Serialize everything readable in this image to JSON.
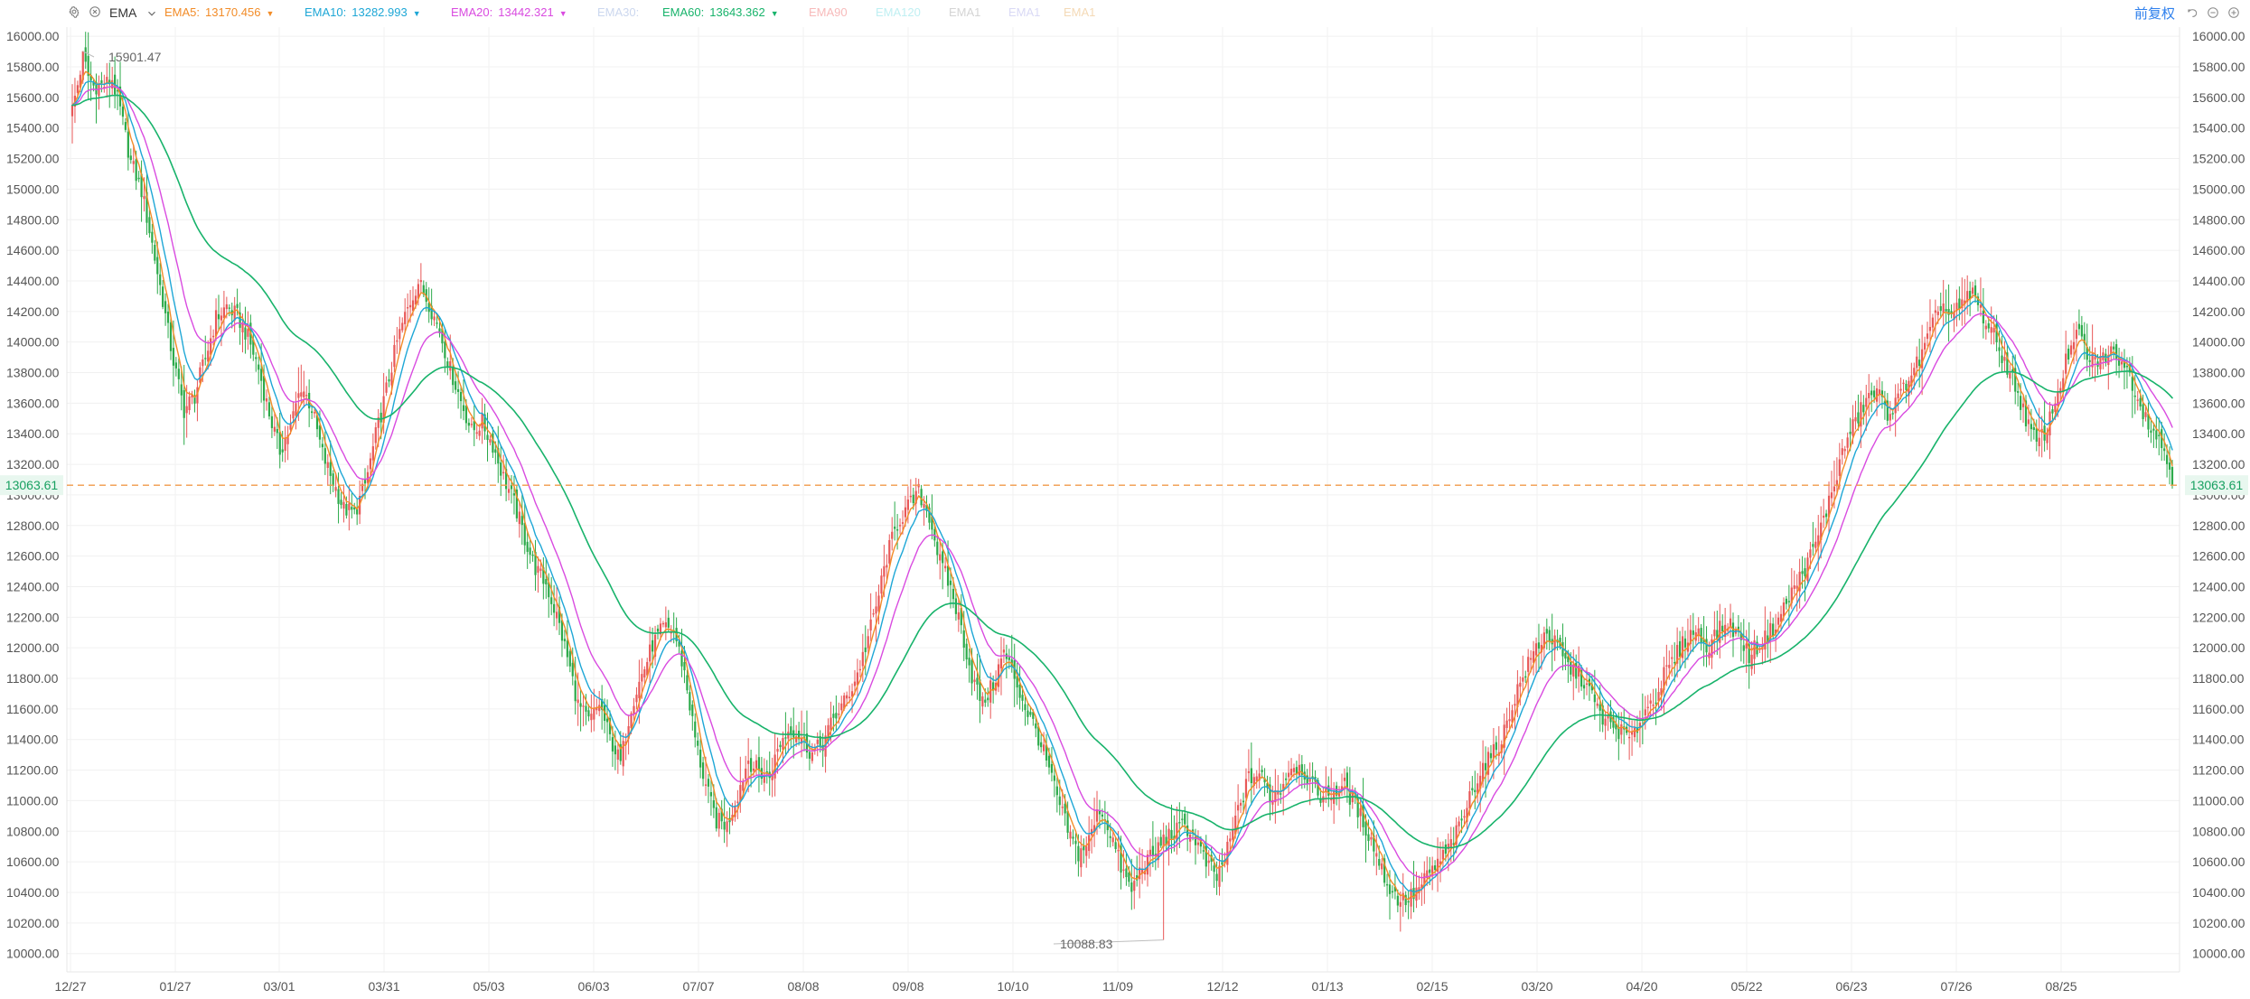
{
  "toolbar": {
    "indicator_name": "EMA",
    "restore_label": "前复权",
    "icons": [
      "settings-icon",
      "close-icon",
      "chevron-down-icon",
      "undo-icon",
      "minimize-icon",
      "add-icon"
    ],
    "legends": [
      {
        "label": "EMA5:",
        "value": "13170.456",
        "color": "#f28c28",
        "active": true
      },
      {
        "label": "EMA10:",
        "value": "13282.993",
        "color": "#1ea7d6",
        "active": true
      },
      {
        "label": "EMA20:",
        "value": "13442.321",
        "color": "#d94be0",
        "active": true
      },
      {
        "label": "EMA30:",
        "value": "",
        "color": "#c9d5ee",
        "active": false
      },
      {
        "label": "EMA60:",
        "value": "13643.362",
        "color": "#18b36b",
        "active": true
      },
      {
        "label": "EMA90",
        "value": "",
        "color": "#f7b7b7",
        "active": false
      },
      {
        "label": "EMA120",
        "value": "",
        "color": "#bceff2",
        "active": false
      },
      {
        "label": "EMA1",
        "value": "",
        "color": "#d2d2d2",
        "active": false
      },
      {
        "label": "EMA1",
        "value": "",
        "color": "#d7d7f5",
        "active": false
      },
      {
        "label": "EMA1",
        "value": "",
        "color": "#f4d8b3",
        "active": false
      }
    ]
  },
  "chart_data": {
    "type": "candlestick",
    "x_tick_labels": [
      "12/27",
      "01/27",
      "03/01",
      "03/31",
      "05/03",
      "06/03",
      "07/07",
      "08/08",
      "09/08",
      "10/10",
      "11/09",
      "12/12",
      "01/13",
      "02/15",
      "03/20",
      "04/20",
      "05/22",
      "06/23",
      "07/26",
      "08/25"
    ],
    "y_tick_labels": [
      "16000.00",
      "15800.00",
      "15600.00",
      "15400.00",
      "15200.00",
      "15000.00",
      "14800.00",
      "14600.00",
      "14400.00",
      "14200.00",
      "14000.00",
      "13800.00",
      "13600.00",
      "13400.00",
      "13200.00",
      "13000.00",
      "12800.00",
      "12600.00",
      "12400.00",
      "12200.00",
      "12000.00",
      "11800.00",
      "11600.00",
      "11400.00",
      "11200.00",
      "11000.00",
      "10800.00",
      "10600.00",
      "10400.00",
      "10200.00",
      "10000.00"
    ],
    "ylim": [
      9880,
      16060
    ],
    "grid": true,
    "current_price_label": "13063.61",
    "current_price": 13063.61,
    "max_label": "15901.47",
    "min_label": "10088.83",
    "candles": {
      "up_color": "#e85858",
      "down_color": "#2caa4a",
      "anchors": [
        [
          0,
          15500
        ],
        [
          2,
          15650
        ],
        [
          4,
          15820
        ],
        [
          6,
          15700
        ],
        [
          8,
          15650
        ],
        [
          12,
          15700
        ],
        [
          15,
          15760
        ],
        [
          18,
          15550
        ],
        [
          22,
          15180
        ],
        [
          26,
          14980
        ],
        [
          30,
          14650
        ],
        [
          34,
          14300
        ],
        [
          38,
          13880
        ],
        [
          42,
          13520
        ],
        [
          46,
          13600
        ],
        [
          50,
          13880
        ],
        [
          54,
          14180
        ],
        [
          58,
          14260
        ],
        [
          62,
          14170
        ],
        [
          66,
          14020
        ],
        [
          70,
          13840
        ],
        [
          74,
          13570
        ],
        [
          78,
          13310
        ],
        [
          82,
          13420
        ],
        [
          86,
          13670
        ],
        [
          90,
          13540
        ],
        [
          94,
          13280
        ],
        [
          98,
          13100
        ],
        [
          102,
          12900
        ],
        [
          106,
          12860
        ],
        [
          110,
          13080
        ],
        [
          114,
          13430
        ],
        [
          118,
          13720
        ],
        [
          122,
          13990
        ],
        [
          126,
          14180
        ],
        [
          130,
          14370
        ],
        [
          134,
          14260
        ],
        [
          138,
          14080
        ],
        [
          142,
          13800
        ],
        [
          146,
          13590
        ],
        [
          150,
          13420
        ],
        [
          154,
          13520
        ],
        [
          158,
          13370
        ],
        [
          162,
          13120
        ],
        [
          166,
          12920
        ],
        [
          170,
          12700
        ],
        [
          174,
          12530
        ],
        [
          178,
          12420
        ],
        [
          182,
          12180
        ],
        [
          186,
          11900
        ],
        [
          190,
          11620
        ],
        [
          194,
          11550
        ],
        [
          198,
          11680
        ],
        [
          202,
          11420
        ],
        [
          206,
          11230
        ],
        [
          210,
          11620
        ],
        [
          214,
          11840
        ],
        [
          218,
          12030
        ],
        [
          222,
          12100
        ],
        [
          226,
          12060
        ],
        [
          230,
          11820
        ],
        [
          234,
          11430
        ],
        [
          238,
          11130
        ],
        [
          242,
          10880
        ],
        [
          246,
          10830
        ],
        [
          250,
          11050
        ],
        [
          254,
          11300
        ],
        [
          258,
          11210
        ],
        [
          262,
          11140
        ],
        [
          266,
          11330
        ],
        [
          270,
          11450
        ],
        [
          274,
          11420
        ],
        [
          278,
          11330
        ],
        [
          282,
          11380
        ],
        [
          286,
          11520
        ],
        [
          290,
          11650
        ],
        [
          294,
          11820
        ],
        [
          298,
          12040
        ],
        [
          302,
          12260
        ],
        [
          306,
          12550
        ],
        [
          310,
          12780
        ],
        [
          314,
          12920
        ],
        [
          318,
          13030
        ],
        [
          322,
          12860
        ],
        [
          326,
          12540
        ],
        [
          330,
          12390
        ],
        [
          334,
          12170
        ],
        [
          338,
          11860
        ],
        [
          342,
          11640
        ],
        [
          346,
          11730
        ],
        [
          350,
          11940
        ],
        [
          354,
          11810
        ],
        [
          358,
          11620
        ],
        [
          362,
          11450
        ],
        [
          366,
          11220
        ],
        [
          370,
          11010
        ],
        [
          374,
          10840
        ],
        [
          378,
          10700
        ],
        [
          382,
          10760
        ],
        [
          386,
          10940
        ],
        [
          390,
          10780
        ],
        [
          394,
          10570
        ],
        [
          398,
          10420
        ],
        [
          402,
          10560
        ],
        [
          406,
          10590
        ],
        [
          410,
          10720
        ],
        [
          414,
          10810
        ],
        [
          418,
          10890
        ],
        [
          422,
          10770
        ],
        [
          426,
          10580
        ],
        [
          430,
          10490
        ],
        [
          434,
          10690
        ],
        [
          438,
          10960
        ],
        [
          442,
          11130
        ],
        [
          446,
          11130
        ],
        [
          450,
          10990
        ],
        [
          454,
          11090
        ],
        [
          458,
          11270
        ],
        [
          462,
          11230
        ],
        [
          466,
          11080
        ],
        [
          470,
          11020
        ],
        [
          474,
          11090
        ],
        [
          478,
          11130
        ],
        [
          482,
          10970
        ],
        [
          486,
          10780
        ],
        [
          490,
          10610
        ],
        [
          494,
          10450
        ],
        [
          498,
          10380
        ],
        [
          502,
          10360
        ],
        [
          506,
          10410
        ],
        [
          510,
          10520
        ],
        [
          514,
          10640
        ],
        [
          518,
          10760
        ],
        [
          522,
          10870
        ],
        [
          526,
          11040
        ],
        [
          530,
          11190
        ],
        [
          534,
          11300
        ],
        [
          538,
          11460
        ],
        [
          542,
          11680
        ],
        [
          546,
          11820
        ],
        [
          550,
          11990
        ],
        [
          554,
          12130
        ],
        [
          558,
          12050
        ],
        [
          562,
          11900
        ],
        [
          566,
          11810
        ],
        [
          570,
          11690
        ],
        [
          574,
          11560
        ],
        [
          578,
          11500
        ],
        [
          582,
          11440
        ],
        [
          586,
          11360
        ],
        [
          590,
          11540
        ],
        [
          594,
          11680
        ],
        [
          598,
          11860
        ],
        [
          602,
          11960
        ],
        [
          606,
          12050
        ],
        [
          610,
          12100
        ],
        [
          614,
          12010
        ],
        [
          618,
          12120
        ],
        [
          622,
          12160
        ],
        [
          626,
          12040
        ],
        [
          630,
          11910
        ],
        [
          634,
          12030
        ],
        [
          638,
          12140
        ],
        [
          642,
          12250
        ],
        [
          646,
          12360
        ],
        [
          650,
          12480
        ],
        [
          654,
          12650
        ],
        [
          658,
          12870
        ],
        [
          662,
          13080
        ],
        [
          666,
          13290
        ],
        [
          670,
          13430
        ],
        [
          674,
          13610
        ],
        [
          678,
          13700
        ],
        [
          682,
          13560
        ],
        [
          686,
          13610
        ],
        [
          690,
          13770
        ],
        [
          694,
          13900
        ],
        [
          698,
          14100
        ],
        [
          702,
          14270
        ],
        [
          706,
          14140
        ],
        [
          710,
          14190
        ],
        [
          714,
          14310
        ],
        [
          718,
          14180
        ],
        [
          722,
          14040
        ],
        [
          726,
          13860
        ],
        [
          730,
          13700
        ],
        [
          734,
          13520
        ],
        [
          738,
          13380
        ],
        [
          742,
          13470
        ],
        [
          746,
          13660
        ],
        [
          750,
          13890
        ],
        [
          754,
          14040
        ],
        [
          758,
          13880
        ],
        [
          762,
          13890
        ],
        [
          766,
          13900
        ],
        [
          770,
          13860
        ],
        [
          774,
          13750
        ],
        [
          778,
          13600
        ],
        [
          782,
          13460
        ],
        [
          786,
          13290
        ],
        [
          789,
          13080
        ]
      ]
    },
    "series": [
      {
        "name": "EMA5",
        "period": 5,
        "color": "#f28c28"
      },
      {
        "name": "EMA10",
        "period": 10,
        "color": "#1ea7d6"
      },
      {
        "name": "EMA20",
        "period": 20,
        "color": "#d94be0"
      },
      {
        "name": "EMA60",
        "period": 60,
        "color": "#18b36b"
      }
    ]
  }
}
